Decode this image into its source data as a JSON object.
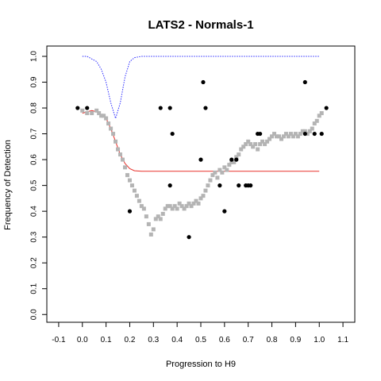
{
  "chart_data": {
    "type": "scatter",
    "title": "LATS2 - Normals-1",
    "xlabel": "Progression to H9",
    "ylabel": "Frequency of Detection",
    "xlim": [
      -0.15,
      1.15
    ],
    "ylim": [
      -0.03,
      1.04
    ],
    "x_ticks": [
      -0.1,
      0.0,
      0.1,
      0.2,
      0.3,
      0.4,
      0.5,
      0.6,
      0.7,
      0.8,
      0.9,
      1.0,
      1.1
    ],
    "x_tick_labels": [
      "-0.1",
      "0.0",
      "0.1",
      "0.2",
      "0.3",
      "0.4",
      "0.5",
      "0.6",
      "0.7",
      "0.8",
      "0.9",
      "1.0",
      "1.1"
    ],
    "y_ticks": [
      0.0,
      0.1,
      0.2,
      0.3,
      0.4,
      0.5,
      0.6,
      0.7,
      0.8,
      0.9,
      1.0
    ],
    "y_tick_labels": [
      "0.0",
      "0.1",
      "0.2",
      "0.3",
      "0.4",
      "0.5",
      "0.6",
      "0.7",
      "0.8",
      "0.9",
      "1.0"
    ],
    "grid": false,
    "colors": {
      "black_points": "#000000",
      "grey_points": "#b4b4b4",
      "red_line": "#e8302a",
      "blue_line": "#2a2aff"
    },
    "series": [
      {
        "marker": "black-dot",
        "points": [
          [
            -0.02,
            0.8
          ],
          [
            0.02,
            0.8
          ],
          [
            0.2,
            0.4
          ],
          [
            0.33,
            0.8
          ],
          [
            0.37,
            0.8
          ],
          [
            0.37,
            0.5
          ],
          [
            0.38,
            0.7
          ],
          [
            0.45,
            0.3
          ],
          [
            0.5,
            0.6
          ],
          [
            0.51,
            0.9
          ],
          [
            0.52,
            0.8
          ],
          [
            0.58,
            0.5
          ],
          [
            0.6,
            0.4
          ],
          [
            0.63,
            0.6
          ],
          [
            0.65,
            0.6
          ],
          [
            0.66,
            0.5
          ],
          [
            0.69,
            0.5
          ],
          [
            0.7,
            0.5
          ],
          [
            0.71,
            0.5
          ],
          [
            0.74,
            0.7
          ],
          [
            0.75,
            0.7
          ],
          [
            0.94,
            0.9
          ],
          [
            0.94,
            0.7
          ],
          [
            0.98,
            0.7
          ],
          [
            1.01,
            0.7
          ],
          [
            1.03,
            0.8
          ]
        ]
      },
      {
        "marker": "grey-square",
        "points": [
          [
            0.0,
            0.79
          ],
          [
            0.02,
            0.78
          ],
          [
            0.04,
            0.78
          ],
          [
            0.06,
            0.79
          ],
          [
            0.07,
            0.78
          ],
          [
            0.08,
            0.77
          ],
          [
            0.09,
            0.77
          ],
          [
            0.1,
            0.76
          ],
          [
            0.11,
            0.74
          ],
          [
            0.12,
            0.72
          ],
          [
            0.13,
            0.7
          ],
          [
            0.14,
            0.67
          ],
          [
            0.15,
            0.64
          ],
          [
            0.16,
            0.62
          ],
          [
            0.17,
            0.6
          ],
          [
            0.18,
            0.57
          ],
          [
            0.19,
            0.54
          ],
          [
            0.2,
            0.52
          ],
          [
            0.21,
            0.5
          ],
          [
            0.22,
            0.48
          ],
          [
            0.23,
            0.46
          ],
          [
            0.24,
            0.44
          ],
          [
            0.25,
            0.42
          ],
          [
            0.26,
            0.41
          ],
          [
            0.27,
            0.38
          ],
          [
            0.28,
            0.35
          ],
          [
            0.29,
            0.31
          ],
          [
            0.3,
            0.33
          ],
          [
            0.31,
            0.37
          ],
          [
            0.32,
            0.38
          ],
          [
            0.33,
            0.37
          ],
          [
            0.34,
            0.39
          ],
          [
            0.35,
            0.41
          ],
          [
            0.36,
            0.42
          ],
          [
            0.37,
            0.42
          ],
          [
            0.38,
            0.41
          ],
          [
            0.39,
            0.42
          ],
          [
            0.4,
            0.41
          ],
          [
            0.41,
            0.43
          ],
          [
            0.42,
            0.42
          ],
          [
            0.43,
            0.41
          ],
          [
            0.44,
            0.42
          ],
          [
            0.45,
            0.43
          ],
          [
            0.46,
            0.42
          ],
          [
            0.47,
            0.43
          ],
          [
            0.48,
            0.44
          ],
          [
            0.49,
            0.43
          ],
          [
            0.5,
            0.45
          ],
          [
            0.51,
            0.46
          ],
          [
            0.52,
            0.48
          ],
          [
            0.53,
            0.5
          ],
          [
            0.54,
            0.52
          ],
          [
            0.55,
            0.54
          ],
          [
            0.56,
            0.55
          ],
          [
            0.57,
            0.53
          ],
          [
            0.58,
            0.56
          ],
          [
            0.59,
            0.55
          ],
          [
            0.6,
            0.57
          ],
          [
            0.61,
            0.56
          ],
          [
            0.62,
            0.58
          ],
          [
            0.63,
            0.59
          ],
          [
            0.64,
            0.59
          ],
          [
            0.65,
            0.61
          ],
          [
            0.66,
            0.62
          ],
          [
            0.67,
            0.64
          ],
          [
            0.68,
            0.65
          ],
          [
            0.69,
            0.66
          ],
          [
            0.7,
            0.67
          ],
          [
            0.71,
            0.66
          ],
          [
            0.72,
            0.65
          ],
          [
            0.73,
            0.66
          ],
          [
            0.74,
            0.64
          ],
          [
            0.75,
            0.66
          ],
          [
            0.76,
            0.67
          ],
          [
            0.77,
            0.66
          ],
          [
            0.78,
            0.67
          ],
          [
            0.79,
            0.68
          ],
          [
            0.8,
            0.69
          ],
          [
            0.81,
            0.7
          ],
          [
            0.82,
            0.69
          ],
          [
            0.83,
            0.69
          ],
          [
            0.84,
            0.68
          ],
          [
            0.85,
            0.69
          ],
          [
            0.86,
            0.7
          ],
          [
            0.87,
            0.69
          ],
          [
            0.88,
            0.7
          ],
          [
            0.89,
            0.69
          ],
          [
            0.9,
            0.7
          ],
          [
            0.91,
            0.69
          ],
          [
            0.92,
            0.7
          ],
          [
            0.93,
            0.71
          ],
          [
            0.94,
            0.71
          ],
          [
            0.95,
            0.7
          ],
          [
            0.96,
            0.71
          ],
          [
            0.97,
            0.72
          ],
          [
            0.98,
            0.74
          ],
          [
            0.99,
            0.75
          ],
          [
            1.0,
            0.77
          ],
          [
            1.01,
            0.78
          ]
        ]
      },
      {
        "marker": "red-line",
        "points": [
          [
            0.0,
            0.78
          ],
          [
            0.02,
            0.785
          ],
          [
            0.04,
            0.79
          ],
          [
            0.06,
            0.785
          ],
          [
            0.08,
            0.775
          ],
          [
            0.1,
            0.76
          ],
          [
            0.12,
            0.72
          ],
          [
            0.14,
            0.67
          ],
          [
            0.16,
            0.62
          ],
          [
            0.18,
            0.585
          ],
          [
            0.2,
            0.565
          ],
          [
            0.22,
            0.557
          ],
          [
            0.25,
            0.555
          ],
          [
            1.0,
            0.555
          ]
        ]
      },
      {
        "marker": "blue-dotted-line",
        "points": [
          [
            0.0,
            1.0
          ],
          [
            0.02,
            1.0
          ],
          [
            0.04,
            0.99
          ],
          [
            0.06,
            0.98
          ],
          [
            0.08,
            0.95
          ],
          [
            0.1,
            0.9
          ],
          [
            0.12,
            0.82
          ],
          [
            0.14,
            0.76
          ],
          [
            0.16,
            0.82
          ],
          [
            0.18,
            0.92
          ],
          [
            0.2,
            0.98
          ],
          [
            0.22,
            0.995
          ],
          [
            0.25,
            1.0
          ],
          [
            1.0,
            1.0
          ]
        ]
      }
    ]
  }
}
